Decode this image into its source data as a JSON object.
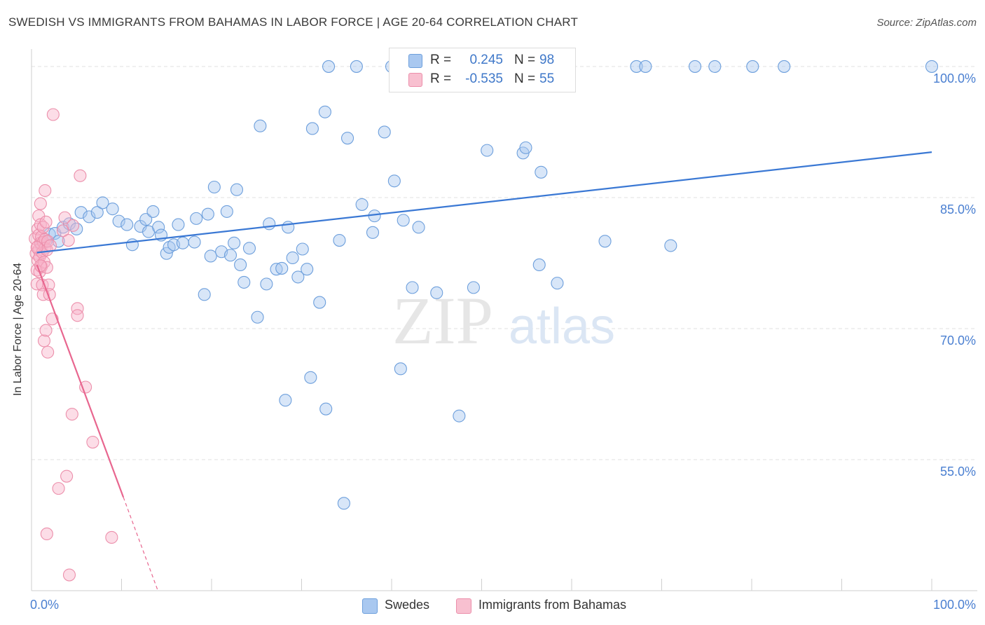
{
  "header": {
    "title": "SWEDISH VS IMMIGRANTS FROM BAHAMAS IN LABOR FORCE | AGE 20-64 CORRELATION CHART",
    "source": "Source: ZipAtlas.com"
  },
  "watermark": {
    "zip": "ZIP",
    "atlas": "atlas"
  },
  "legend_top": {
    "rows": [
      {
        "r_label": "R =",
        "r_value": "0.245",
        "n_label": "N =",
        "n_value": "98",
        "color": "#a9c8f0",
        "border": "#6d9fdc"
      },
      {
        "r_label": "R =",
        "r_value": "-0.535",
        "n_label": "N =",
        "n_value": "55",
        "color": "#f8c0d0",
        "border": "#ec8fab"
      }
    ]
  },
  "legend_bottom": {
    "items": [
      {
        "label": "Swedes",
        "color": "#a9c8f0",
        "border": "#6d9fdc"
      },
      {
        "label": "Immigrants from Bahamas",
        "color": "#f8c0d0",
        "border": "#ec8fab"
      }
    ]
  },
  "chart_data": {
    "type": "scatter",
    "title": "SWEDISH VS IMMIGRANTS FROM BAHAMAS IN LABOR FORCE | AGE 20-64 CORRELATION CHART",
    "xlabel": "",
    "ylabel": "In Labor Force | Age 20-64",
    "xlim": [
      0,
      100
    ],
    "ylim": [
      40,
      102
    ],
    "x_tick_labels": [
      "0.0%",
      "100.0%"
    ],
    "y_ticks": [
      55,
      70,
      85,
      100
    ],
    "y_tick_labels": [
      "55.0%",
      "70.0%",
      "85.0%",
      "100.0%"
    ],
    "grid": true,
    "legend_position": "top-center",
    "colors": {
      "swedes": "#3a78d4",
      "bahamas": "#e8668f",
      "tick_label": "#4a7fd1"
    },
    "series": [
      {
        "name": "Swedes",
        "color": "#6d9fdc",
        "trend": {
          "x0": 0.6,
          "y0": 78.7,
          "x1": 100,
          "y1": 90.2
        },
        "points": [
          [
            1.1,
            79.5
          ],
          [
            1.6,
            80.0
          ],
          [
            2.0,
            80.8
          ],
          [
            2.6,
            80.9
          ],
          [
            3.0,
            80.0
          ],
          [
            3.5,
            81.6
          ],
          [
            4.2,
            82.0
          ],
          [
            5.0,
            81.4
          ],
          [
            5.5,
            83.3
          ],
          [
            6.4,
            82.8
          ],
          [
            7.3,
            83.3
          ],
          [
            7.9,
            84.4
          ],
          [
            9.0,
            83.7
          ],
          [
            9.7,
            82.3
          ],
          [
            10.6,
            81.9
          ],
          [
            11.2,
            79.6
          ],
          [
            12.1,
            81.7
          ],
          [
            12.7,
            82.5
          ],
          [
            13.0,
            81.1
          ],
          [
            13.5,
            83.4
          ],
          [
            14.1,
            81.6
          ],
          [
            14.4,
            80.7
          ],
          [
            15.0,
            78.6
          ],
          [
            15.3,
            79.3
          ],
          [
            15.8,
            79.6
          ],
          [
            16.3,
            81.9
          ],
          [
            16.8,
            79.8
          ],
          [
            18.1,
            79.9
          ],
          [
            18.3,
            82.6
          ],
          [
            19.2,
            73.9
          ],
          [
            19.6,
            83.1
          ],
          [
            19.9,
            78.3
          ],
          [
            20.3,
            86.2
          ],
          [
            21.1,
            78.8
          ],
          [
            21.7,
            83.4
          ],
          [
            22.1,
            78.4
          ],
          [
            22.5,
            79.8
          ],
          [
            22.8,
            85.9
          ],
          [
            23.2,
            77.3
          ],
          [
            23.6,
            75.3
          ],
          [
            24.2,
            79.2
          ],
          [
            25.1,
            71.3
          ],
          [
            25.4,
            93.2
          ],
          [
            26.1,
            75.1
          ],
          [
            26.4,
            82.0
          ],
          [
            27.2,
            76.8
          ],
          [
            27.8,
            76.9
          ],
          [
            28.2,
            61.8
          ],
          [
            28.5,
            81.6
          ],
          [
            29.0,
            78.1
          ],
          [
            29.6,
            75.9
          ],
          [
            30.1,
            79.1
          ],
          [
            30.6,
            76.8
          ],
          [
            31.0,
            64.4
          ],
          [
            31.2,
            92.9
          ],
          [
            32.0,
            73.0
          ],
          [
            32.6,
            94.8
          ],
          [
            32.7,
            60.8
          ],
          [
            33.0,
            100.0
          ],
          [
            34.2,
            80.1
          ],
          [
            34.7,
            50.0
          ],
          [
            35.1,
            91.8
          ],
          [
            36.1,
            100.0
          ],
          [
            36.7,
            84.2
          ],
          [
            37.9,
            81.0
          ],
          [
            38.1,
            82.9
          ],
          [
            39.2,
            92.5
          ],
          [
            40.0,
            100.0
          ],
          [
            40.3,
            86.9
          ],
          [
            41.0,
            65.4
          ],
          [
            41.3,
            82.4
          ],
          [
            42.2,
            100.0
          ],
          [
            42.3,
            74.7
          ],
          [
            43.0,
            81.6
          ],
          [
            43.4,
            100.0
          ],
          [
            44.1,
            100.0
          ],
          [
            45.0,
            74.1
          ],
          [
            47.4,
            100.0
          ],
          [
            47.5,
            60.0
          ],
          [
            48.0,
            100.0
          ],
          [
            49.1,
            74.7
          ],
          [
            50.3,
            100.0
          ],
          [
            50.6,
            90.4
          ],
          [
            52.0,
            100.0
          ],
          [
            54.6,
            90.1
          ],
          [
            54.9,
            90.7
          ],
          [
            56.4,
            77.3
          ],
          [
            56.6,
            87.9
          ],
          [
            58.4,
            75.2
          ],
          [
            63.7,
            80.0
          ],
          [
            67.2,
            100.0
          ],
          [
            68.2,
            100.0
          ],
          [
            71.0,
            79.5
          ],
          [
            73.7,
            100.0
          ],
          [
            75.9,
            100.0
          ],
          [
            80.1,
            100.0
          ],
          [
            83.6,
            100.0
          ],
          [
            100.0,
            100.0
          ]
        ]
      },
      {
        "name": "Immigrants from Bahamas",
        "color": "#ec8fab",
        "trend": {
          "x0": 0.6,
          "y0": 77.3,
          "x1": 10.2,
          "y1": 50.7,
          "x_dash_end": 14.0,
          "y_dash_end": 40.1
        },
        "points": [
          [
            0.4,
            80.3
          ],
          [
            0.5,
            78.6
          ],
          [
            0.6,
            76.7
          ],
          [
            0.6,
            75.1
          ],
          [
            0.7,
            81.4
          ],
          [
            0.7,
            79.4
          ],
          [
            0.7,
            77.8
          ],
          [
            0.8,
            82.9
          ],
          [
            0.8,
            80.7
          ],
          [
            0.8,
            79.0
          ],
          [
            0.9,
            78.2
          ],
          [
            0.9,
            76.5
          ],
          [
            1.0,
            81.9
          ],
          [
            1.0,
            84.3
          ],
          [
            1.0,
            79.8
          ],
          [
            1.1,
            77.1
          ],
          [
            1.1,
            80.5
          ],
          [
            1.2,
            78.7
          ],
          [
            1.2,
            75.0
          ],
          [
            1.3,
            81.6
          ],
          [
            1.3,
            79.9
          ],
          [
            1.3,
            73.9
          ],
          [
            1.4,
            77.6
          ],
          [
            1.4,
            68.6
          ],
          [
            1.5,
            80.2
          ],
          [
            1.5,
            79.2
          ],
          [
            1.5,
            85.8
          ],
          [
            1.6,
            82.2
          ],
          [
            1.6,
            69.8
          ],
          [
            1.7,
            79.0
          ],
          [
            1.7,
            77.0
          ],
          [
            1.8,
            67.3
          ],
          [
            1.8,
            80.0
          ],
          [
            1.9,
            75.0
          ],
          [
            2.0,
            73.9
          ],
          [
            2.1,
            79.5
          ],
          [
            2.3,
            71.1
          ],
          [
            2.4,
            94.5
          ],
          [
            3.0,
            51.7
          ],
          [
            3.5,
            81.2
          ],
          [
            3.7,
            82.7
          ],
          [
            3.9,
            53.1
          ],
          [
            4.1,
            80.1
          ],
          [
            4.2,
            41.8
          ],
          [
            4.5,
            60.2
          ],
          [
            4.6,
            81.8
          ],
          [
            5.1,
            72.3
          ],
          [
            5.1,
            71.5
          ],
          [
            5.4,
            87.5
          ],
          [
            6.0,
            63.3
          ],
          [
            6.8,
            57.0
          ],
          [
            8.9,
            46.1
          ],
          [
            1.7,
            46.5
          ],
          [
            1.0,
            77.2
          ],
          [
            0.6,
            79.3
          ]
        ]
      }
    ]
  }
}
